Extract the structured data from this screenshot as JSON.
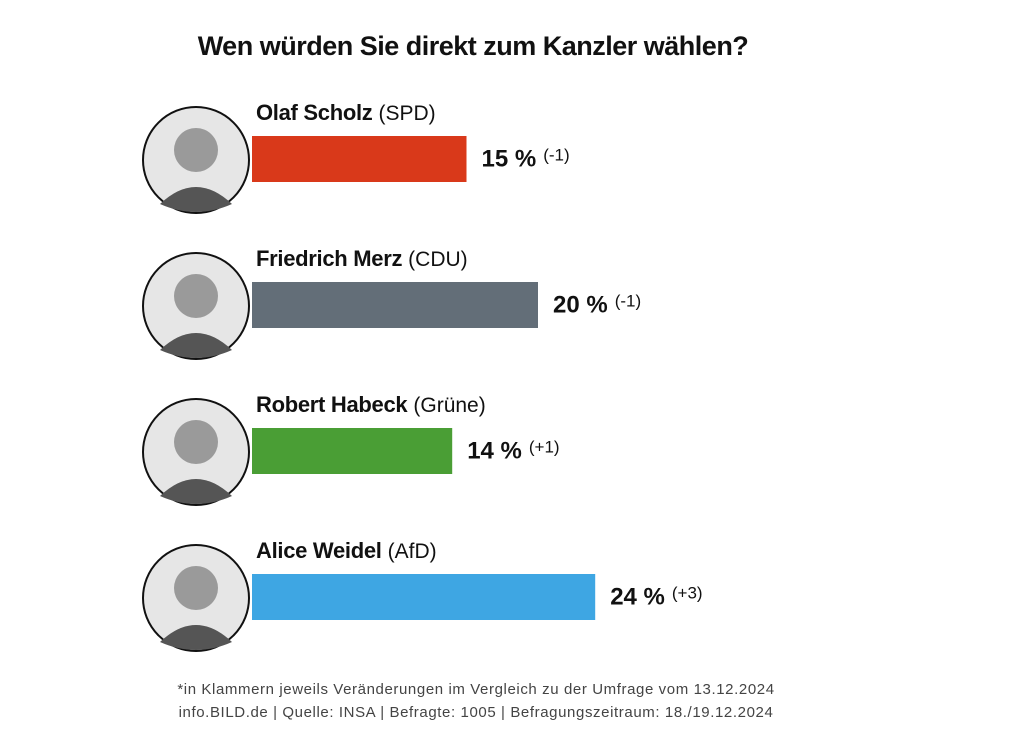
{
  "chart_data": {
    "type": "bar",
    "title": "Wen würden Sie direkt zum Kanzler wählen?",
    "categories": [
      "Olaf Scholz",
      "Friedrich Merz",
      "Robert Habeck",
      "Alice Weidel"
    ],
    "parties": [
      "(SPD)",
      "(CDU)",
      "(Grüne)",
      "(AfD)"
    ],
    "values": [
      15,
      20,
      14,
      24
    ],
    "value_labels": [
      "15 %",
      "20 %",
      "14 %",
      "24 %"
    ],
    "changes": [
      "(-1)",
      "(-1)",
      "(+1)",
      "(+3)"
    ],
    "colors": [
      "#d9391a",
      "#636e78",
      "#4a9e35",
      "#3ea6e3"
    ],
    "footnotes": [
      "*in Klammern jeweils Veränderungen im Vergleich zu der Umfrage vom 13.12.2024",
      "info.BILD.de | Quelle: INSA | Befragte: 1005 | Befragungszeitraum: 18./19.12.2024"
    ]
  }
}
